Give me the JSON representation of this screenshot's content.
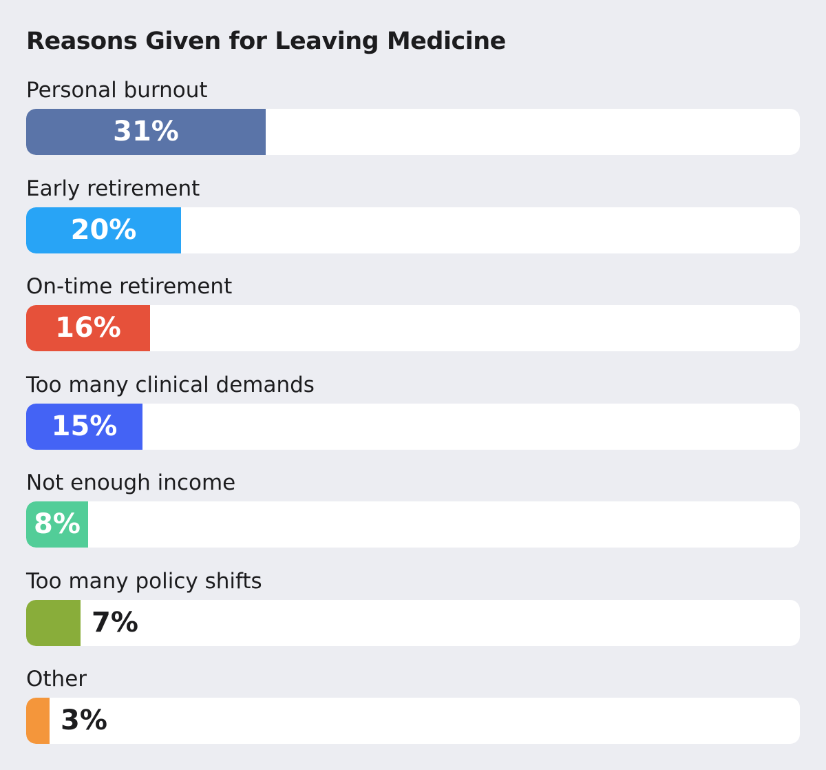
{
  "chart_data": {
    "type": "bar",
    "orientation": "horizontal",
    "title": "Reasons Given for Leaving Medicine",
    "xlim": [
      0,
      100
    ],
    "unit": "%",
    "grid": false,
    "categories": [
      "Personal burnout",
      "Early retirement",
      "On-time retirement",
      "Too many clinical demands",
      "Not enough income",
      "Too many policy shifts",
      "Other"
    ],
    "values": [
      31,
      20,
      16,
      15,
      8,
      7,
      3
    ],
    "value_labels": [
      "31%",
      "20%",
      "16%",
      "15%",
      "8%",
      "7%",
      "3%"
    ],
    "colors": [
      "#5a74a8",
      "#28a4f6",
      "#e6513a",
      "#4463f5",
      "#52cd98",
      "#89ad3a",
      "#f4963b"
    ],
    "track_color": "#ffffff",
    "background_color": "#ecedf2"
  }
}
